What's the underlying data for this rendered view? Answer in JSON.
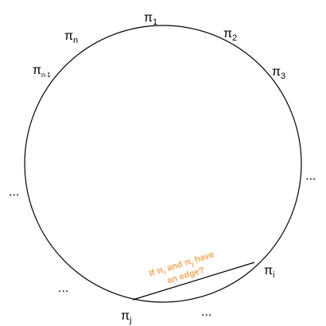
{
  "colors": {
    "stroke": "#000000",
    "annotation": "#f5a65b"
  },
  "nodes": {
    "pi_1": {
      "symbol": "π",
      "sub": "1"
    },
    "pi_2": {
      "symbol": "π",
      "sub": "2"
    },
    "pi_3": {
      "symbol": "π",
      "sub": "3"
    },
    "pi_n": {
      "symbol": "π",
      "sub": "n"
    },
    "pi_n_minus_1": {
      "symbol": "π",
      "sub": "n-1"
    },
    "pi_i": {
      "symbol": "π",
      "sub": "i"
    },
    "pi_j": {
      "symbol": "π",
      "sub": "j"
    }
  },
  "ellipses": {
    "left": "...",
    "right": "...",
    "bottom_left": "...",
    "bottom_right": "..."
  },
  "annotation": {
    "line1_prefix": "If π",
    "line1_sub_i": "i",
    "line1_mid": " and π",
    "line1_sub_j": "j",
    "line1_suffix": " have",
    "line2": "an edge?"
  }
}
